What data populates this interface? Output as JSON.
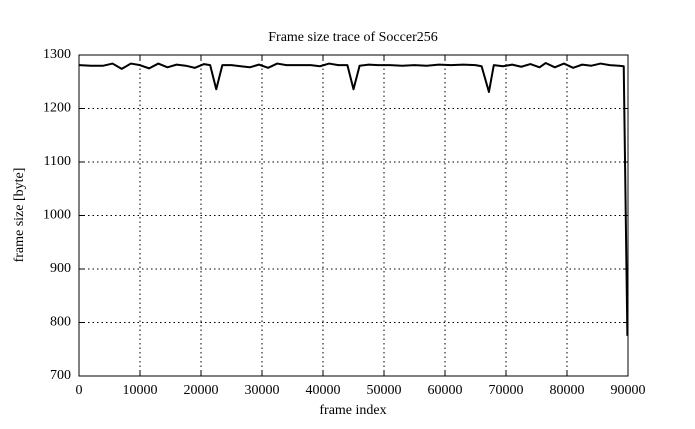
{
  "chart_data": {
    "type": "line",
    "title": "Frame size trace of Soccer256",
    "x_label": "frame index",
    "y_label": "frame size [byte]",
    "x": [
      0,
      2000,
      4000,
      5500,
      7000,
      8500,
      10000,
      11500,
      13000,
      14500,
      16000,
      17500,
      19000,
      20500,
      21500,
      22500,
      23500,
      25000,
      26500,
      28000,
      29500,
      31000,
      32500,
      34000,
      36000,
      38000,
      39500,
      41000,
      42500,
      44000,
      45000,
      46000,
      47500,
      49000,
      51000,
      53000,
      55000,
      57000,
      59000,
      61000,
      63000,
      65000,
      66000,
      67200,
      68000,
      69500,
      71000,
      72500,
      74000,
      75500,
      76500,
      78000,
      79500,
      81000,
      82500,
      84000,
      85500,
      87000,
      88500,
      89300,
      89900
    ],
    "values": [
      1281,
      1280,
      1280,
      1284,
      1274,
      1284,
      1281,
      1275,
      1284,
      1277,
      1282,
      1280,
      1276,
      1283,
      1281,
      1236,
      1281,
      1281,
      1279,
      1277,
      1282,
      1276,
      1284,
      1281,
      1281,
      1281,
      1279,
      1284,
      1281,
      1281,
      1236,
      1280,
      1282,
      1281,
      1281,
      1280,
      1281,
      1280,
      1282,
      1281,
      1282,
      1281,
      1279,
      1231,
      1281,
      1279,
      1282,
      1278,
      1283,
      1277,
      1285,
      1277,
      1284,
      1276,
      1282,
      1280,
      1284,
      1281,
      1280,
      1279,
      775
    ],
    "color": "#000000",
    "xlim": [
      0,
      90000
    ],
    "xticks": [
      0,
      10000,
      20000,
      30000,
      40000,
      50000,
      60000,
      70000,
      80000,
      90000
    ],
    "ylim": [
      700,
      1300
    ],
    "yticks": [
      700,
      800,
      900,
      1000,
      1100,
      1200,
      1300
    ],
    "grid": true
  }
}
